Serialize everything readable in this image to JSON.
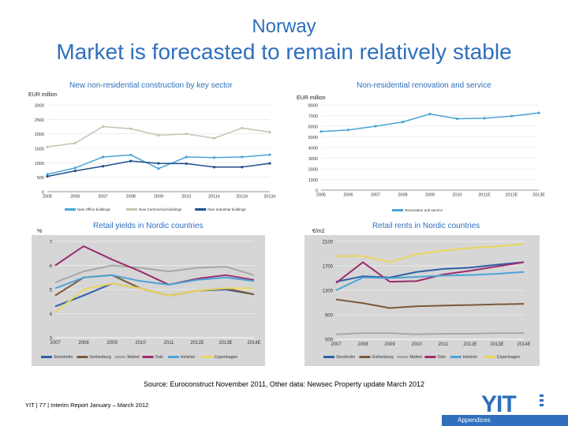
{
  "header": {
    "country": "Norway",
    "title": "Market is forecasted to remain relatively stable"
  },
  "colors": {
    "blue": "#2f6fbd",
    "lightblue": "#4aa3d8",
    "navy": "#1f4e8c",
    "beige": "#c9c2b0",
    "gray": "#a9a9a9"
  },
  "chart_data": [
    {
      "type": "line",
      "title": "New non-residential construction by key sector",
      "ylabel": "EUR million",
      "x": [
        "2005",
        "2006",
        "2007",
        "2008",
        "2009",
        "2010",
        "2011e",
        "2012e",
        "2013e"
      ],
      "ylim": [
        0,
        3000
      ],
      "yticks": [
        0,
        500,
        1000,
        1500,
        2000,
        2500,
        3000
      ],
      "series": [
        {
          "name": "New Office buildings",
          "color": "#4aa3d8",
          "values": [
            600,
            820,
            1200,
            1270,
            800,
            1200,
            1180,
            1200,
            1280
          ]
        },
        {
          "name": "New Commercial buildings",
          "color": "#c9c2b0",
          "values": [
            1550,
            1680,
            2250,
            2180,
            1950,
            2000,
            1850,
            2200,
            2060
          ]
        },
        {
          "name": "New Industrial buildings",
          "color": "#1f4e8c",
          "values": [
            530,
            720,
            880,
            1060,
            980,
            970,
            850,
            850,
            980
          ]
        }
      ]
    },
    {
      "type": "line",
      "title": "Non-residential renovation and service",
      "ylabel": "EUR million",
      "x": [
        "2005",
        "2006",
        "2007",
        "2008",
        "2009",
        "2010",
        "2011E",
        "2012E",
        "2013E"
      ],
      "ylim": [
        0,
        8000
      ],
      "yticks": [
        0,
        1000,
        2000,
        3000,
        4000,
        5000,
        6000,
        7000,
        8000
      ],
      "series": [
        {
          "name": "Renovation and service",
          "color": "#4aa3d8",
          "values": [
            5500,
            5650,
            6000,
            6400,
            7150,
            6700,
            6750,
            6950,
            7250
          ]
        }
      ]
    },
    {
      "type": "line",
      "title": "Retail yields in Nordic countries",
      "ylabel": "%",
      "x": [
        "2007",
        "2008",
        "2009",
        "2010",
        "2011",
        "2012E",
        "2013E",
        "2014E"
      ],
      "ylim": [
        3,
        7
      ],
      "yticks": [
        3,
        4,
        5,
        6,
        7
      ],
      "series": [
        {
          "name": "Stockholm",
          "color": "#2f5fa8",
          "values": [
            4.3,
            4.75,
            5.25,
            5.05,
            4.75,
            4.95,
            5.0,
            4.8
          ]
        },
        {
          "name": "Gothenburg",
          "color": "#7b5a3a",
          "values": [
            4.75,
            5.5,
            5.6,
            5.05,
            4.75,
            4.95,
            5.05,
            4.8
          ]
        },
        {
          "name": "Malmö",
          "color": "#a8a8a8",
          "values": [
            5.3,
            5.75,
            6.0,
            5.9,
            5.75,
            5.9,
            5.95,
            5.6
          ]
        },
        {
          "name": "Oslo",
          "color": "#9b2d6e",
          "values": [
            6.0,
            6.8,
            6.25,
            5.75,
            5.2,
            5.45,
            5.6,
            5.4
          ]
        },
        {
          "name": "Helsinki",
          "color": "#4aa3d8",
          "values": [
            5.05,
            5.5,
            5.6,
            5.35,
            5.2,
            5.4,
            5.5,
            5.35
          ]
        },
        {
          "name": "Copenhagen",
          "color": "#e8d65a",
          "values": [
            4.05,
            5.0,
            5.25,
            5.05,
            4.75,
            4.95,
            5.05,
            5.05
          ]
        }
      ]
    },
    {
      "type": "line",
      "title": "Retail rents in Nordic countries",
      "ylabel": "€/m2",
      "x": [
        "2007",
        "2008",
        "2009",
        "2010",
        "2011",
        "2012E",
        "2013E",
        "2014E"
      ],
      "ylim": [
        500,
        2100
      ],
      "yticks": [
        500,
        900,
        1300,
        1700,
        2100
      ],
      "series": [
        {
          "name": "Stockholm",
          "color": "#2f5fa8",
          "values": [
            1440,
            1530,
            1510,
            1600,
            1650,
            1670,
            1720,
            1760
          ]
        },
        {
          "name": "Gothenburg",
          "color": "#7b5a3a",
          "values": [
            1150,
            1090,
            1010,
            1040,
            1050,
            1060,
            1070,
            1080
          ]
        },
        {
          "name": "Malmö",
          "color": "#a8a8a8",
          "values": [
            580,
            600,
            600,
            580,
            590,
            590,
            600,
            600
          ]
        },
        {
          "name": "Oslo",
          "color": "#9b2d6e",
          "values": [
            1420,
            1760,
            1440,
            1450,
            1560,
            1620,
            1690,
            1760
          ]
        },
        {
          "name": "Helsinki",
          "color": "#4aa3d8",
          "values": [
            1300,
            1510,
            1500,
            1520,
            1540,
            1550,
            1570,
            1600
          ]
        },
        {
          "name": "Copenhagen",
          "color": "#e8d65a",
          "values": [
            1860,
            1860,
            1760,
            1890,
            1950,
            1990,
            2020,
            2060
          ]
        }
      ]
    }
  ],
  "source": "Source: Euroconstruct November 2011, Other data: Newsec Property update March 2012",
  "footer": "YIT  |  77  |  Interim Report January – March 2012",
  "logo": "YIT",
  "appendices": "Appendices"
}
